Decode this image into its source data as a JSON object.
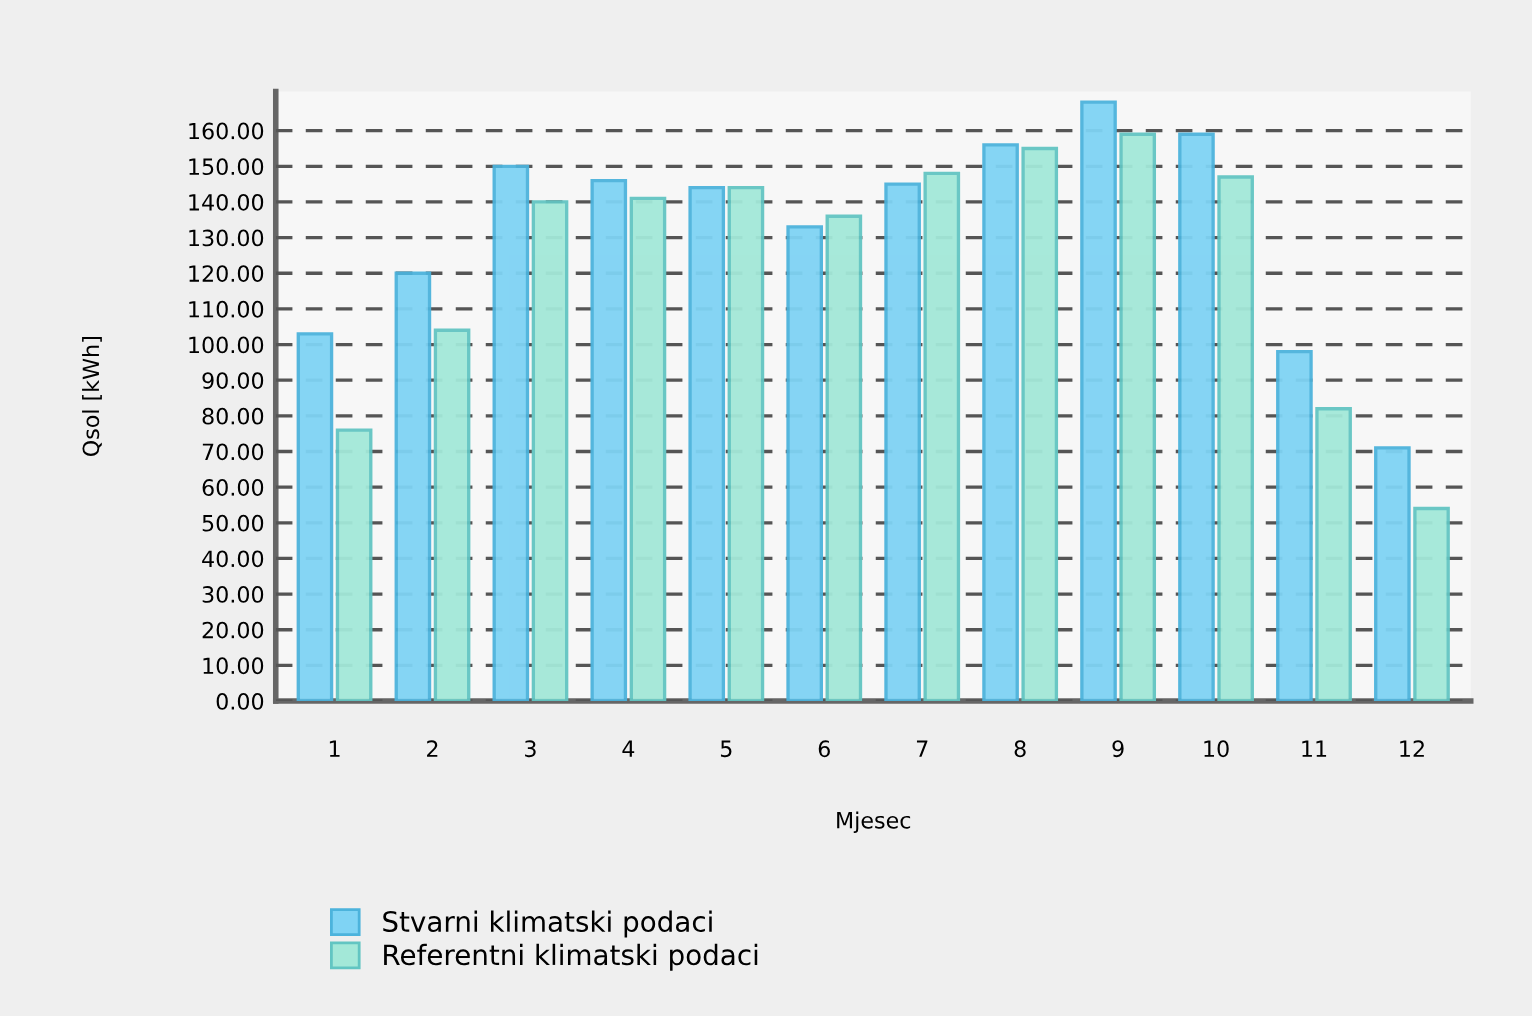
{
  "chart_data": {
    "type": "bar",
    "xlabel": "Mjesec",
    "ylabel": "Qsol [kWh]",
    "categories": [
      "1",
      "2",
      "3",
      "4",
      "5",
      "6",
      "7",
      "8",
      "9",
      "10",
      "11",
      "12"
    ],
    "series": [
      {
        "name": "Stvarni klimatski podaci",
        "color": "#7fd3f4",
        "values": [
          103,
          120,
          150,
          146,
          144,
          133,
          145,
          156,
          168,
          159,
          98,
          71
        ]
      },
      {
        "name": "Referentni klimatski podaci",
        "color": "#a3e8d8",
        "values": [
          76,
          104,
          140,
          141,
          144,
          136,
          148,
          155,
          159,
          147,
          82,
          54
        ]
      }
    ],
    "ylim": [
      0,
      171
    ],
    "yticks": [
      {
        "value": 0,
        "label": "0.00"
      },
      {
        "value": 10,
        "label": "10.00"
      },
      {
        "value": 20,
        "label": "20.00"
      },
      {
        "value": 30,
        "label": "30.00"
      },
      {
        "value": 40,
        "label": "40.00"
      },
      {
        "value": 50,
        "label": "50.00"
      },
      {
        "value": 60,
        "label": "60.00"
      },
      {
        "value": 70,
        "label": "70.00"
      },
      {
        "value": 80,
        "label": "80.00"
      },
      {
        "value": 90,
        "label": "90.00"
      },
      {
        "value": 100,
        "label": "100.00"
      },
      {
        "value": 110,
        "label": "110.00"
      },
      {
        "value": 120,
        "label": "120.00"
      },
      {
        "value": 130,
        "label": "130.00"
      },
      {
        "value": 140,
        "label": "140.00"
      },
      {
        "value": 150,
        "label": "150.00"
      },
      {
        "value": 160,
        "label": "160.00"
      }
    ],
    "grid": "y",
    "legend": "bottom left"
  }
}
